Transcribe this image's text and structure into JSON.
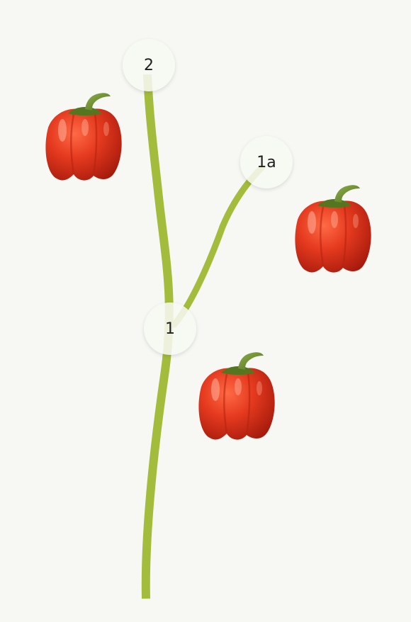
{
  "nodes": {
    "n2": {
      "label": "2"
    },
    "n1a": {
      "label": "1a"
    },
    "n1": {
      "label": "1"
    }
  },
  "peppers": [
    {
      "name": "pepper-upper-left"
    },
    {
      "name": "pepper-right"
    },
    {
      "name": "pepper-lower"
    }
  ],
  "colors": {
    "stem": "#a4bc3c",
    "pepper_red": "#e03b22",
    "pepper_stalk": "#6b8b2a",
    "background": "#f7f8f4"
  }
}
